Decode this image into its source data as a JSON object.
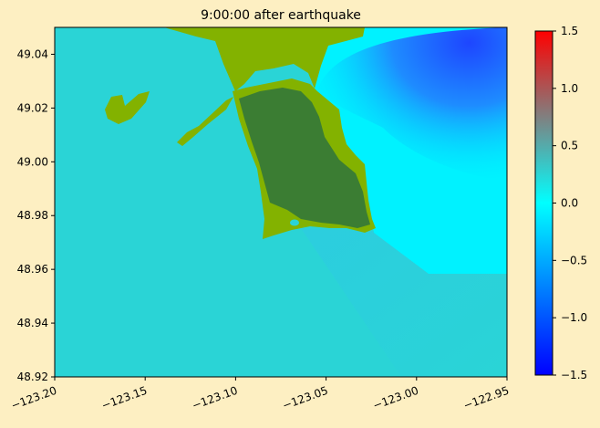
{
  "chart_data": {
    "type": "heatmap",
    "title": "9:00:00 after earthquake",
    "xlabel": "",
    "ylabel": "",
    "xlim": [
      -123.2,
      -122.95
    ],
    "ylim": [
      48.92,
      49.05
    ],
    "x_ticks": [
      -123.2,
      -123.15,
      -123.1,
      -123.05,
      -123.0,
      -122.95
    ],
    "x_tick_labels": [
      "−123.20",
      "−123.15",
      "−123.10",
      "−123.05",
      "−123.00",
      "−122.95"
    ],
    "y_ticks": [
      48.92,
      48.94,
      48.96,
      48.98,
      49.0,
      49.02,
      49.04
    ],
    "y_tick_labels": [
      "48.92",
      "48.94",
      "48.96",
      "48.98",
      "49.00",
      "49.02",
      "49.04"
    ],
    "colorbar": {
      "range": [
        -1.5,
        1.5
      ],
      "ticks": [
        -1.5,
        -1.0,
        -0.5,
        0.0,
        0.5,
        1.0,
        1.5
      ],
      "tick_labels": [
        "−1.5",
        "−1.0",
        "−0.5",
        "0.0",
        "0.5",
        "1.0",
        "1.5"
      ],
      "colors": [
        "#0000ff",
        "#00ffff",
        "#808080",
        "#ff0000"
      ]
    },
    "background_field_value": 0.1,
    "regions": [
      {
        "name": "negative-anomaly",
        "value": -1.2,
        "color": "#1e50ff"
      },
      {
        "name": "land-upland",
        "color": "#3b7d33"
      },
      {
        "name": "land-lowland",
        "color": "#83b200"
      }
    ],
    "grid": false,
    "legend": "none"
  }
}
